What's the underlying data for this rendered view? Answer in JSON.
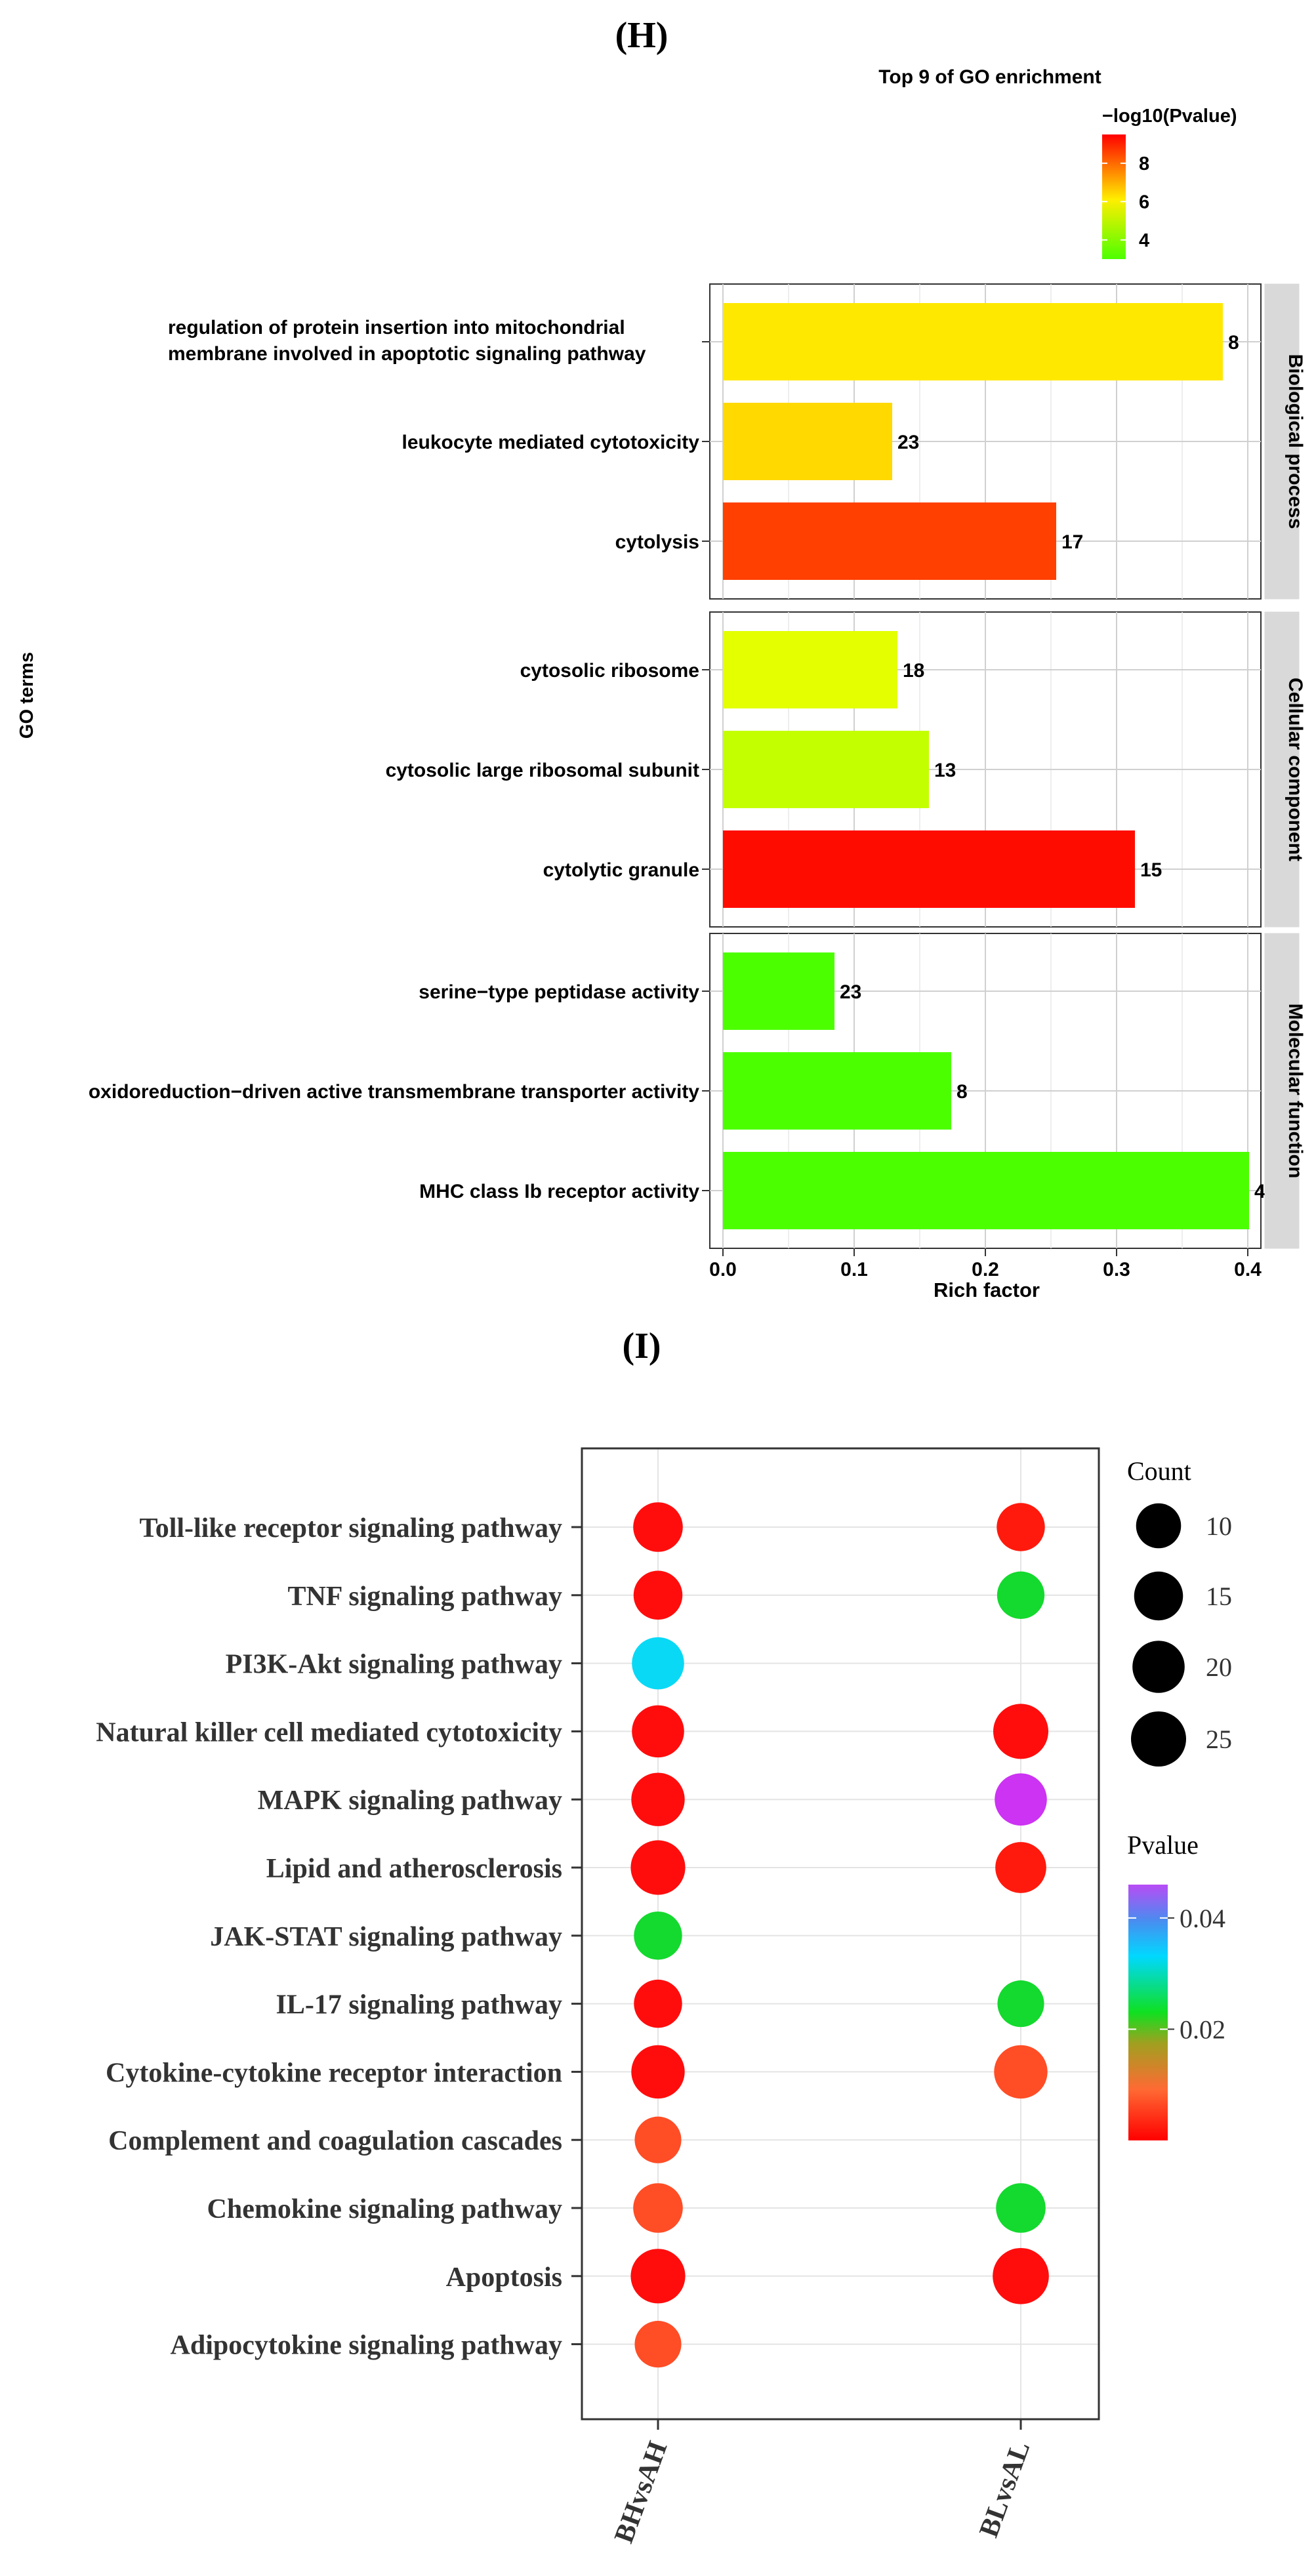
{
  "panels": {
    "h_label": "(H)",
    "i_label": "(I)"
  },
  "chart_data": [
    {
      "type": "bar",
      "orientation": "horizontal",
      "title": "Top 9 of GO enrichment",
      "xlabel": "Rich factor",
      "ylabel": "GO terms",
      "xlim": [
        -0.01,
        0.41
      ],
      "xticks": [
        0.0,
        0.1,
        0.2,
        0.3,
        0.4
      ],
      "xtick_labels": [
        "0.0",
        "0.1",
        "0.2",
        "0.3",
        "0.4"
      ],
      "color_legend": {
        "title": "−log10(Pvalue)",
        "ticks": [
          4,
          6,
          8
        ],
        "range": [
          3.0,
          9.5
        ],
        "colors": [
          "#4dff00",
          "#ffee00",
          "#ff0000"
        ]
      },
      "facets": [
        {
          "name": "Biological process",
          "terms": [
            {
              "label": "regulation of protein insertion into mitochondrial membrane involved in apoptotic signaling pathway",
              "label_lines": [
                "regulation of protein insertion into mitochondrial",
                "membrane involved in apoptotic signaling pathway"
              ],
              "rich_factor": 0.381,
              "count": 8,
              "count_label": "8",
              "neg_log10_p": 6.0,
              "color": "#ffe800"
            },
            {
              "label": "leukocyte mediated cytotoxicity",
              "label_lines": [
                "leukocyte mediated cytotoxicity"
              ],
              "rich_factor": 0.129,
              "count": 23,
              "count_label": "23",
              "neg_log10_p": 6.6,
              "color": "#ffd900"
            },
            {
              "label": "cytolysis",
              "label_lines": [
                "cytolysis"
              ],
              "rich_factor": 0.254,
              "count": 17,
              "count_label": "17",
              "neg_log10_p": 8.6,
              "color": "#ff4000"
            }
          ]
        },
        {
          "name": "Cellular component",
          "terms": [
            {
              "label": "cytosolic ribosome",
              "label_lines": [
                "cytosolic ribosome"
              ],
              "rich_factor": 0.133,
              "count": 18,
              "count_label": "18",
              "neg_log10_p": 5.6,
              "color": "#e3ff00"
            },
            {
              "label": "cytosolic large ribosomal subunit",
              "label_lines": [
                "cytosolic large ribosomal subunit"
              ],
              "rich_factor": 0.157,
              "count": 13,
              "count_label": "13",
              "neg_log10_p": 5.2,
              "color": "#c4ff00"
            },
            {
              "label": "cytolytic granule",
              "label_lines": [
                "cytolytic granule"
              ],
              "rich_factor": 0.314,
              "count": 15,
              "count_label": "15",
              "neg_log10_p": 9.2,
              "color": "#ff0c00"
            }
          ]
        },
        {
          "name": "Molecular function",
          "terms": [
            {
              "label": "serine−type peptidase activity",
              "label_lines": [
                "serine−type peptidase activity"
              ],
              "rich_factor": 0.085,
              "count": 23,
              "count_label": "23",
              "neg_log10_p": 3.5,
              "color": "#4cff00"
            },
            {
              "label": "oxidoreduction−driven active transmembrane transporter activity",
              "label_lines": [
                "oxidoreduction−driven active transmembrane transporter activity"
              ],
              "rich_factor": 0.174,
              "count": 8,
              "count_label": "8",
              "neg_log10_p": 3.5,
              "color": "#4cff00"
            },
            {
              "label": "MHC class Ib receptor activity",
              "label_lines": [
                "MHC class Ib receptor activity"
              ],
              "rich_factor": 0.401,
              "count": 4,
              "count_label": "4",
              "neg_log10_p": 3.5,
              "color": "#4cff00"
            }
          ]
        }
      ]
    },
    {
      "type": "scatter",
      "subtype": "bubble",
      "x_categories": [
        "BHvsAH",
        "BLvsAL"
      ],
      "y_categories": [
        "Toll-like receptor signaling pathway",
        "TNF signaling pathway",
        "PI3K-Akt signaling pathway",
        "Natural killer cell mediated cytotoxicity",
        "MAPK signaling pathway",
        "Lipid and atherosclerosis",
        "JAK-STAT signaling pathway",
        "IL-17 signaling pathway",
        "Cytokine-cytokine receptor interaction",
        "Complement and coagulation cascades",
        "Chemokine signaling pathway",
        "Apoptosis",
        "Adipocytokine signaling pathway"
      ],
      "size_legend": {
        "title": "Count",
        "values": [
          10,
          15,
          20,
          25
        ],
        "labels": [
          "10",
          "15",
          "20",
          "25"
        ]
      },
      "color_legend": {
        "title": "Pvalue",
        "ticks": [
          0.02,
          0.04
        ],
        "tick_labels": [
          "0.02",
          "0.04"
        ],
        "range": [
          0.0,
          0.046
        ]
      },
      "points": [
        {
          "x": "BHvsAH",
          "y": "Toll-like receptor signaling pathway",
          "count": 16,
          "pvalue": 0.001,
          "color": "#ff0d0d"
        },
        {
          "x": "BLvsAL",
          "y": "Toll-like receptor signaling pathway",
          "count": 14,
          "pvalue": 0.002,
          "color": "#ff1a0d"
        },
        {
          "x": "BHvsAH",
          "y": "TNF signaling pathway",
          "count": 15,
          "pvalue": 0.001,
          "color": "#ff0d0d"
        },
        {
          "x": "BLvsAL",
          "y": "TNF signaling pathway",
          "count": 13,
          "pvalue": 0.025,
          "color": "#14d92e"
        },
        {
          "x": "BHvsAH",
          "y": "PI3K-Akt signaling pathway",
          "count": 20,
          "pvalue": 0.04,
          "color": "#0ad9f5"
        },
        {
          "x": "BHvsAH",
          "y": "Natural killer cell mediated cytotoxicity",
          "count": 20,
          "pvalue": 0.001,
          "color": "#ff0d0d"
        },
        {
          "x": "BLvsAL",
          "y": "Natural killer cell mediated cytotoxicity",
          "count": 25,
          "pvalue": 0.001,
          "color": "#ff0d0d"
        },
        {
          "x": "BHvsAH",
          "y": "MAPK signaling pathway",
          "count": 22,
          "pvalue": 0.001,
          "color": "#ff0d0d"
        },
        {
          "x": "BLvsAL",
          "y": "MAPK signaling pathway",
          "count": 20,
          "pvalue": 0.045,
          "color": "#cc33f2"
        },
        {
          "x": "BHvsAH",
          "y": "Lipid and atherosclerosis",
          "count": 24,
          "pvalue": 0.001,
          "color": "#ff0d0d"
        },
        {
          "x": "BLvsAL",
          "y": "Lipid and atherosclerosis",
          "count": 18,
          "pvalue": 0.002,
          "color": "#ff1a0d"
        },
        {
          "x": "BHvsAH",
          "y": "JAK-STAT signaling pathway",
          "count": 14,
          "pvalue": 0.025,
          "color": "#14d92e"
        },
        {
          "x": "BHvsAH",
          "y": "IL-17 signaling pathway",
          "count": 14,
          "pvalue": 0.001,
          "color": "#ff0d0d"
        },
        {
          "x": "BLvsAL",
          "y": "IL-17 signaling pathway",
          "count": 12,
          "pvalue": 0.025,
          "color": "#14d92e"
        },
        {
          "x": "BHvsAH",
          "y": "Cytokine-cytokine receptor interaction",
          "count": 22,
          "pvalue": 0.001,
          "color": "#ff0d0d"
        },
        {
          "x": "BLvsAL",
          "y": "Cytokine-cytokine receptor interaction",
          "count": 22,
          "pvalue": 0.006,
          "color": "#ff4d26"
        },
        {
          "x": "BHvsAH",
          "y": "Complement and coagulation cascades",
          "count": 12,
          "pvalue": 0.006,
          "color": "#ff4d26"
        },
        {
          "x": "BHvsAH",
          "y": "Chemokine signaling pathway",
          "count": 16,
          "pvalue": 0.006,
          "color": "#ff4d26"
        },
        {
          "x": "BLvsAL",
          "y": "Chemokine signaling pathway",
          "count": 16,
          "pvalue": 0.025,
          "color": "#14d92e"
        },
        {
          "x": "BHvsAH",
          "y": "Apoptosis",
          "count": 24,
          "pvalue": 0.001,
          "color": "#ff0d0d"
        },
        {
          "x": "BLvsAL",
          "y": "Apoptosis",
          "count": 27,
          "pvalue": 0.001,
          "color": "#ff0d0d"
        },
        {
          "x": "BHvsAH",
          "y": "Adipocytokine signaling pathway",
          "count": 12,
          "pvalue": 0.006,
          "color": "#ff4d26"
        }
      ]
    }
  ]
}
